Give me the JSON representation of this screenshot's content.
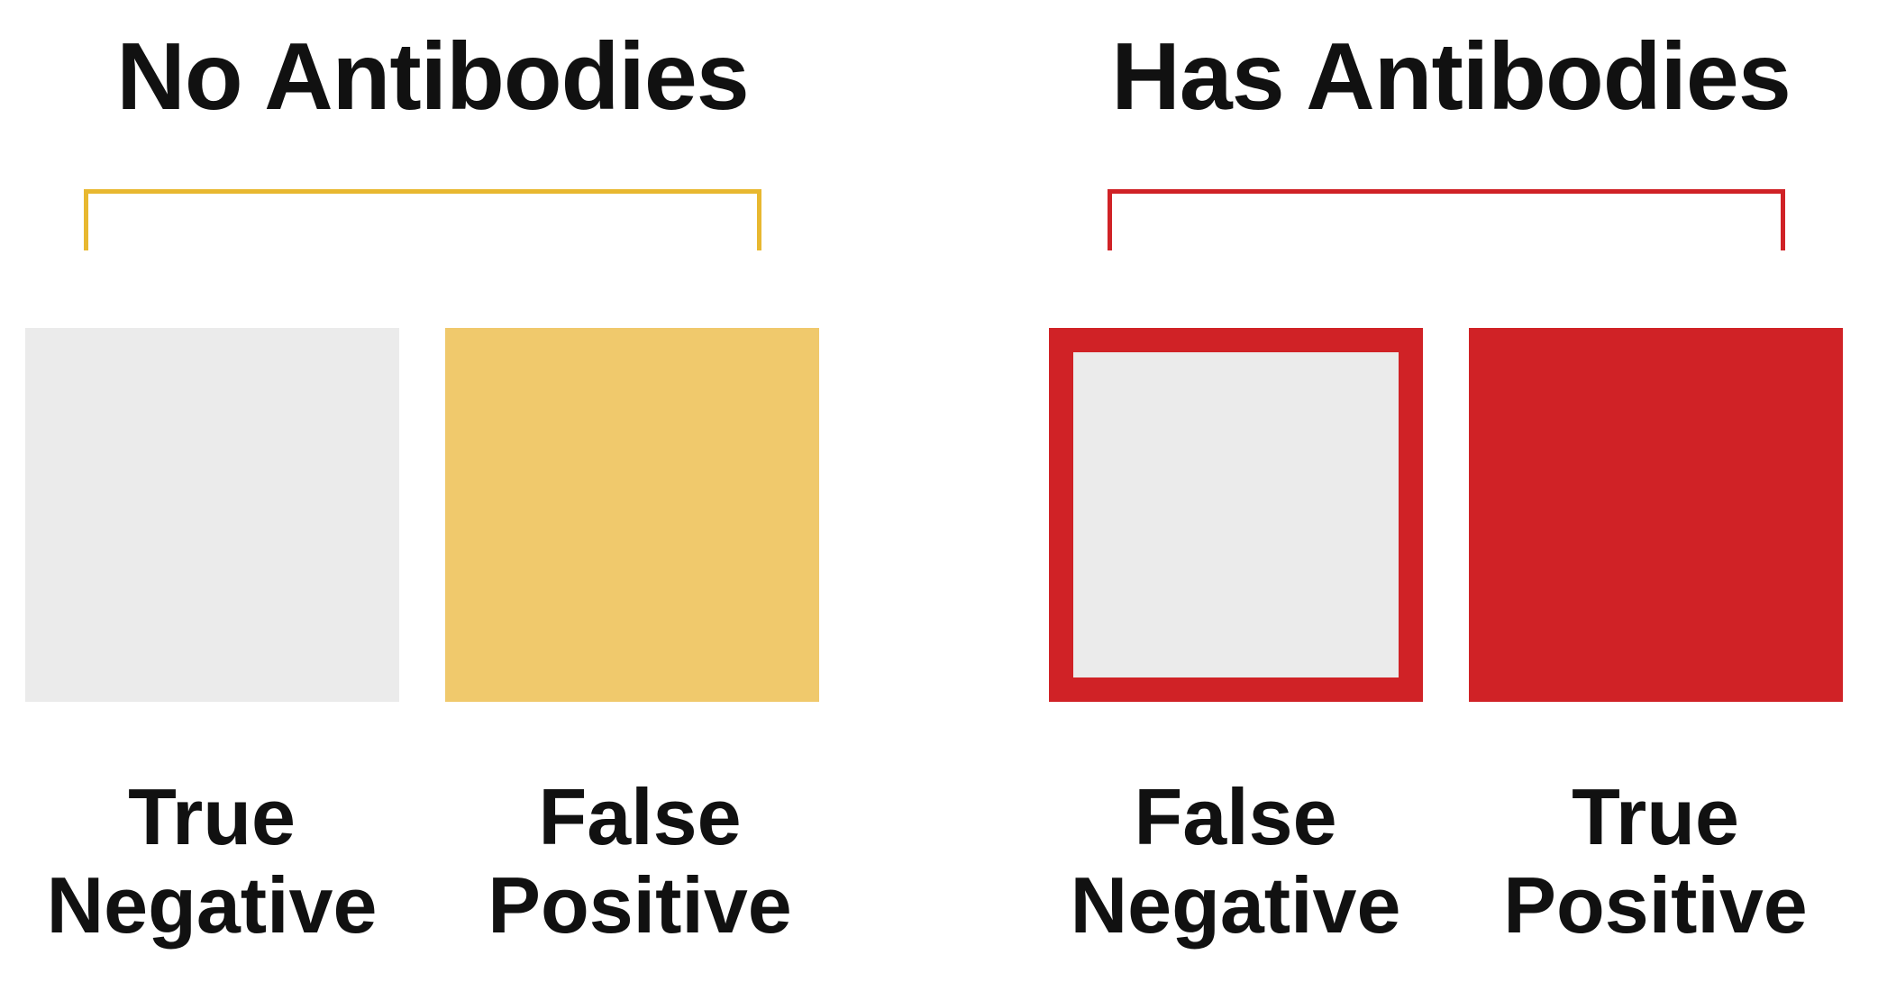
{
  "groups": {
    "no_antibodies": {
      "title": "No Antibodies",
      "color": "#E8B830"
    },
    "has_antibodies": {
      "title": "Has Antibodies",
      "color": "#D02226"
    }
  },
  "outcomes": [
    {
      "line1": "True",
      "line2": "Negative",
      "fill": "#EBEBEB",
      "border": "none"
    },
    {
      "line1": "False",
      "line2": "Positive",
      "fill": "#F0C96C",
      "border": "none"
    },
    {
      "line1": "False",
      "line2": "Negative",
      "fill": "#EBEBEB",
      "border": "#D02226"
    },
    {
      "line1": "True",
      "line2": "Positive",
      "fill": "#D02226",
      "border": "none"
    }
  ]
}
